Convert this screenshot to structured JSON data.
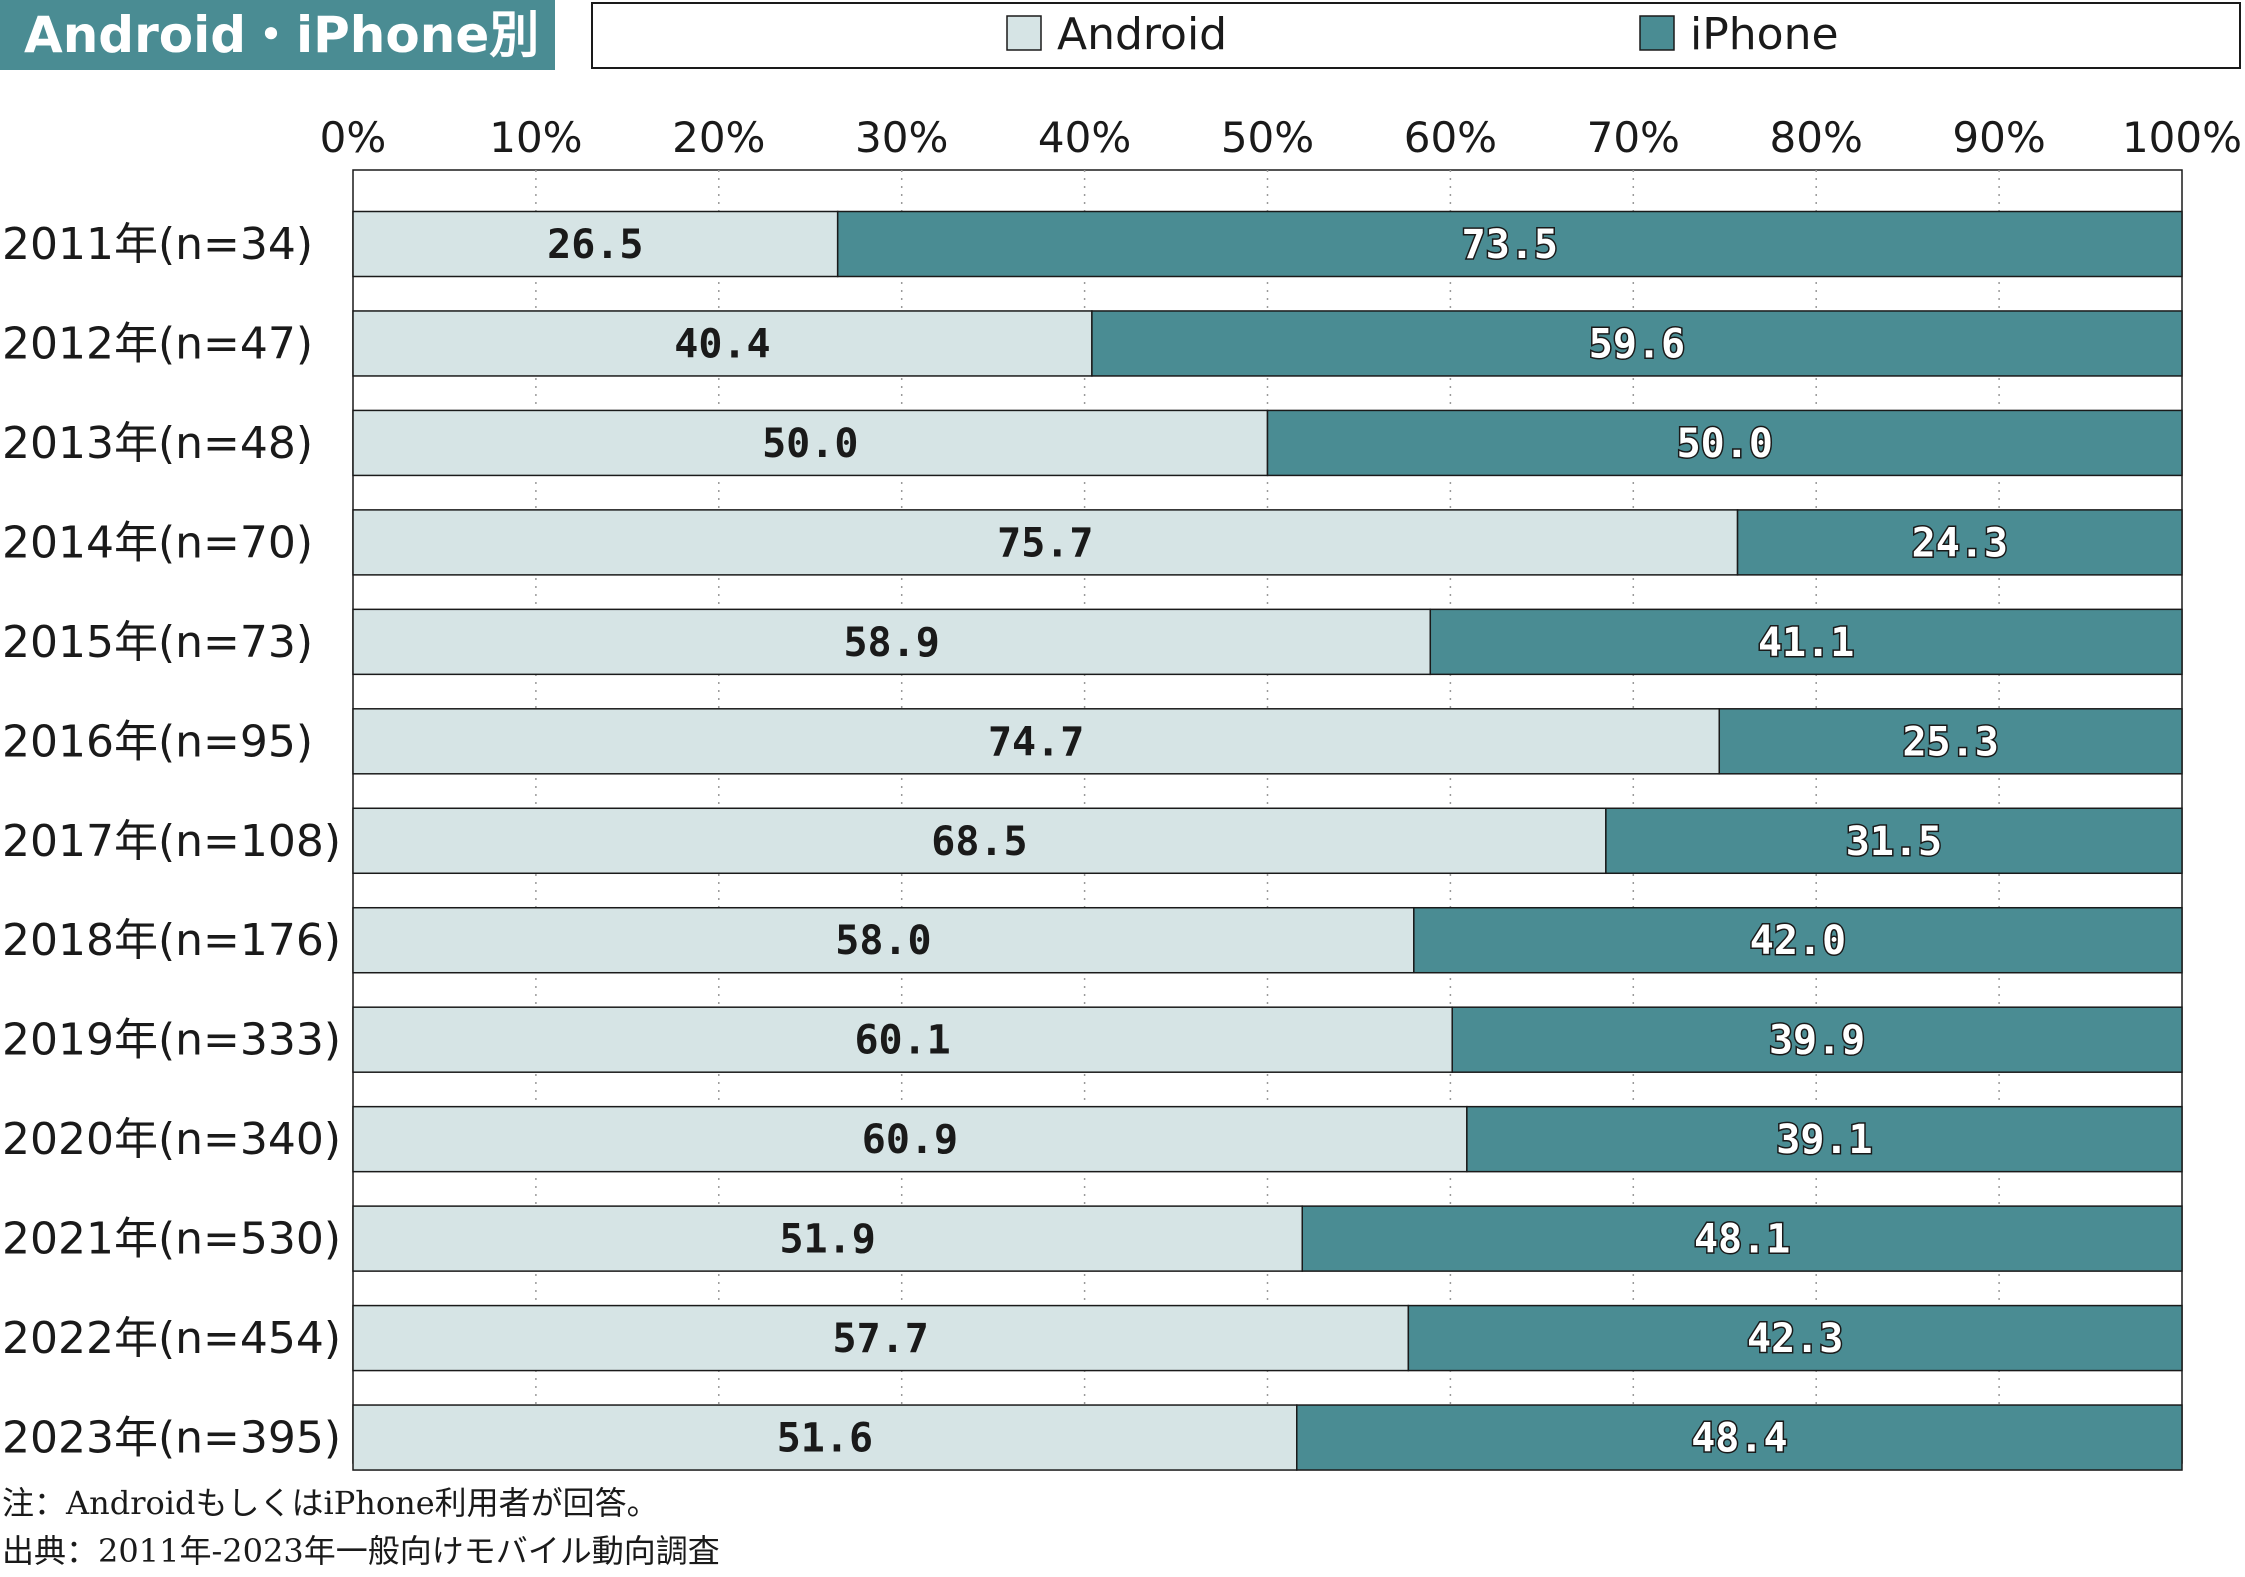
{
  "header": {
    "title": "Android・iPhone別"
  },
  "legend": {
    "items": [
      {
        "label": "Android",
        "color": "#d6e4e5"
      },
      {
        "label": "iPhone",
        "color": "#4a8c93"
      }
    ]
  },
  "notes": {
    "note": "注：AndroidもしくはiPhone利用者が回答。",
    "source": "出典：2011年-2023年一般向けモバイル動向調査"
  },
  "colors": {
    "android": "#d6e4e5",
    "iphone": "#4a8c93",
    "header_bg": "#4a8c93"
  },
  "chart_data": {
    "type": "bar",
    "orientation": "horizontal",
    "stacked": true,
    "percent": true,
    "categories": [
      "2011年(n=34)",
      "2012年(n=47)",
      "2013年(n=48)",
      "2014年(n=70)",
      "2015年(n=73)",
      "2016年(n=95)",
      "2017年(n=108)",
      "2018年(n=176)",
      "2019年(n=333)",
      "2020年(n=340)",
      "2021年(n=530)",
      "2022年(n=454)",
      "2023年(n=395)"
    ],
    "series": [
      {
        "name": "Android",
        "values": [
          26.5,
          40.4,
          50.0,
          75.7,
          58.9,
          74.7,
          68.5,
          58.0,
          60.1,
          60.9,
          51.9,
          57.7,
          51.6
        ]
      },
      {
        "name": "iPhone",
        "values": [
          73.5,
          59.6,
          50.0,
          24.3,
          41.1,
          25.3,
          31.5,
          42.0,
          39.9,
          39.1,
          48.1,
          42.3,
          48.4
        ]
      }
    ],
    "value_labels": {
      "Android": [
        "26.5",
        "40.4",
        "50.0",
        "75.7",
        "58.9",
        "74.7",
        "68.5",
        "58.0",
        "60.1",
        "60.9",
        "51.9",
        "57.7",
        "51.6"
      ],
      "iPhone": [
        "73.5",
        "59.6",
        "50.0",
        "24.3",
        "41.1",
        "25.3",
        "31.5",
        "42.0",
        "39.9",
        "39.1",
        "48.1",
        "42.3",
        "48.4"
      ]
    },
    "x_ticks": [
      "0%",
      "10%",
      "20%",
      "30%",
      "40%",
      "50%",
      "60%",
      "70%",
      "80%",
      "90%",
      "100%"
    ],
    "xlim": [
      0,
      100
    ],
    "grid": "vertical dotted",
    "legend_position": "top"
  }
}
